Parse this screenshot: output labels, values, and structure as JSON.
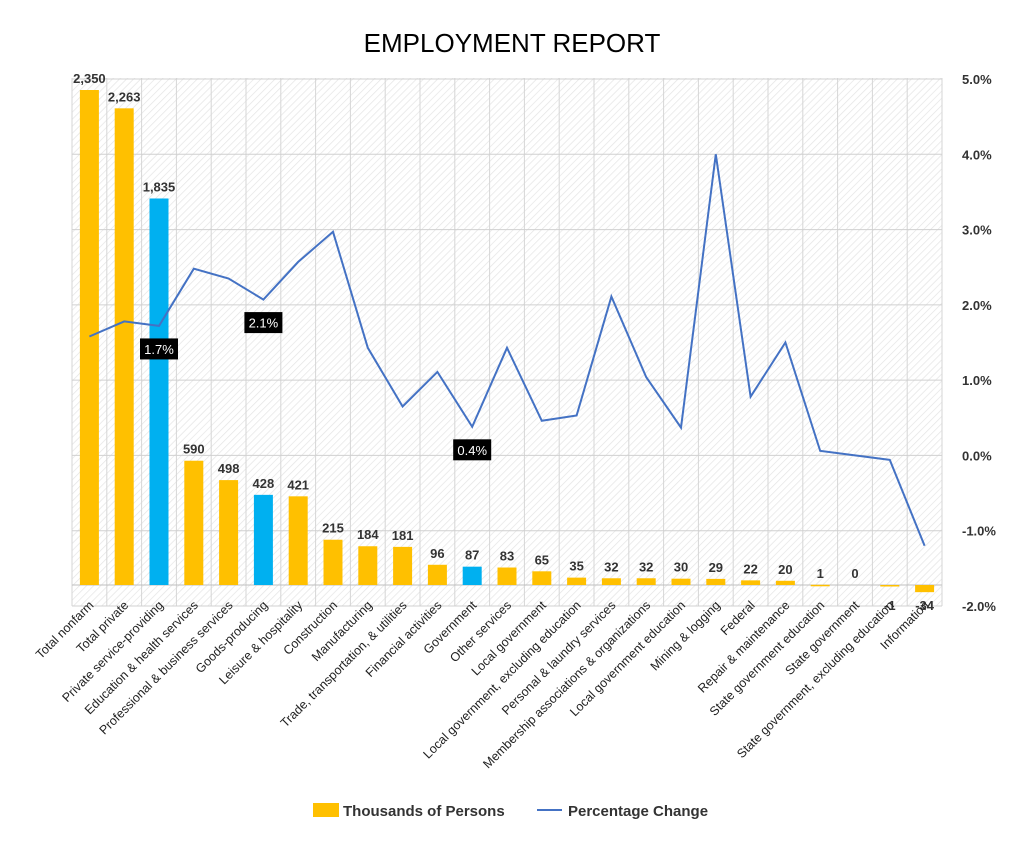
{
  "chart_data": {
    "type": "bar+line",
    "title": "EMPLOYMENT REPORT",
    "categories": [
      "Total nonfarm",
      "Total private",
      "Private service-providing",
      "Education & health services",
      "Professional & business services",
      "Goods-producing",
      "Leisure & hospitality",
      "Construction",
      "Manufacturing",
      "Trade, transportation, & utilities",
      "Financial activities",
      "Government",
      "Other services",
      "Local government",
      "Local government, excluding education",
      "Personal & laundry services",
      "Membership associations & organizations",
      "Local government education",
      "Mining & logging",
      "Federal",
      "Repair & maintenance",
      "State government education",
      "State government",
      "State government, excluding education",
      "Information"
    ],
    "series": [
      {
        "name": "Thousands of Persons",
        "type": "bar",
        "axis": "left",
        "values": [
          2350,
          2263,
          1835,
          590,
          498,
          428,
          421,
          215,
          184,
          181,
          96,
          87,
          83,
          65,
          35,
          32,
          32,
          30,
          29,
          22,
          20,
          1,
          0,
          -1,
          -34
        ],
        "labels": [
          "2,350",
          "2,263",
          "1,835",
          "590",
          "498",
          "428",
          "421",
          "215",
          "184",
          "181",
          "96",
          "87",
          "83",
          "65",
          "35",
          "32",
          "32",
          "30",
          "29",
          "22",
          "20",
          "1",
          "0",
          "-1",
          "-34"
        ],
        "colors": [
          "#FFC000",
          "#FFC000",
          "#00B0F0",
          "#FFC000",
          "#FFC000",
          "#00B0F0",
          "#FFC000",
          "#FFC000",
          "#FFC000",
          "#FFC000",
          "#FFC000",
          "#00B0F0",
          "#FFC000",
          "#FFC000",
          "#FFC000",
          "#FFC000",
          "#FFC000",
          "#FFC000",
          "#FFC000",
          "#FFC000",
          "#FFC000",
          "#FFC000",
          "#FFC000",
          "#FFC000",
          "#FFC000"
        ]
      },
      {
        "name": "Percentage Change",
        "type": "line",
        "axis": "right",
        "color": "#4472C4",
        "values": [
          1.58,
          1.78,
          1.72,
          2.48,
          2.35,
          2.07,
          2.57,
          2.97,
          1.43,
          0.65,
          1.11,
          0.38,
          1.43,
          0.46,
          0.53,
          2.11,
          1.04,
          0.37,
          4.0,
          0.78,
          1.5,
          0.06,
          0.0,
          -0.06,
          -1.2
        ]
      }
    ],
    "y_left": {
      "min": -100,
      "max": 2350
    },
    "y_right": {
      "min": -2.0,
      "max": 5.0,
      "ticks": [
        5.0,
        4.0,
        3.0,
        2.0,
        1.0,
        0.0,
        -1.0,
        -2.0
      ],
      "tick_labels": [
        "5.0%",
        "4.0%",
        "3.0%",
        "2.0%",
        "1.0%",
        "0.0%",
        "-1.0%",
        "-2.0%"
      ]
    },
    "callouts": [
      {
        "category_index": 2,
        "text": "1.7%"
      },
      {
        "category_index": 5,
        "text": "2.1%"
      },
      {
        "category_index": 11,
        "text": "0.4%"
      }
    ],
    "legend": {
      "position": "bottom",
      "items": [
        {
          "label": "Thousands of Persons",
          "color": "#FFC000",
          "kind": "bar"
        },
        {
          "label": "Percentage Change",
          "color": "#4472C4",
          "kind": "line"
        }
      ]
    },
    "grid": true,
    "plot_background": "hatched"
  }
}
